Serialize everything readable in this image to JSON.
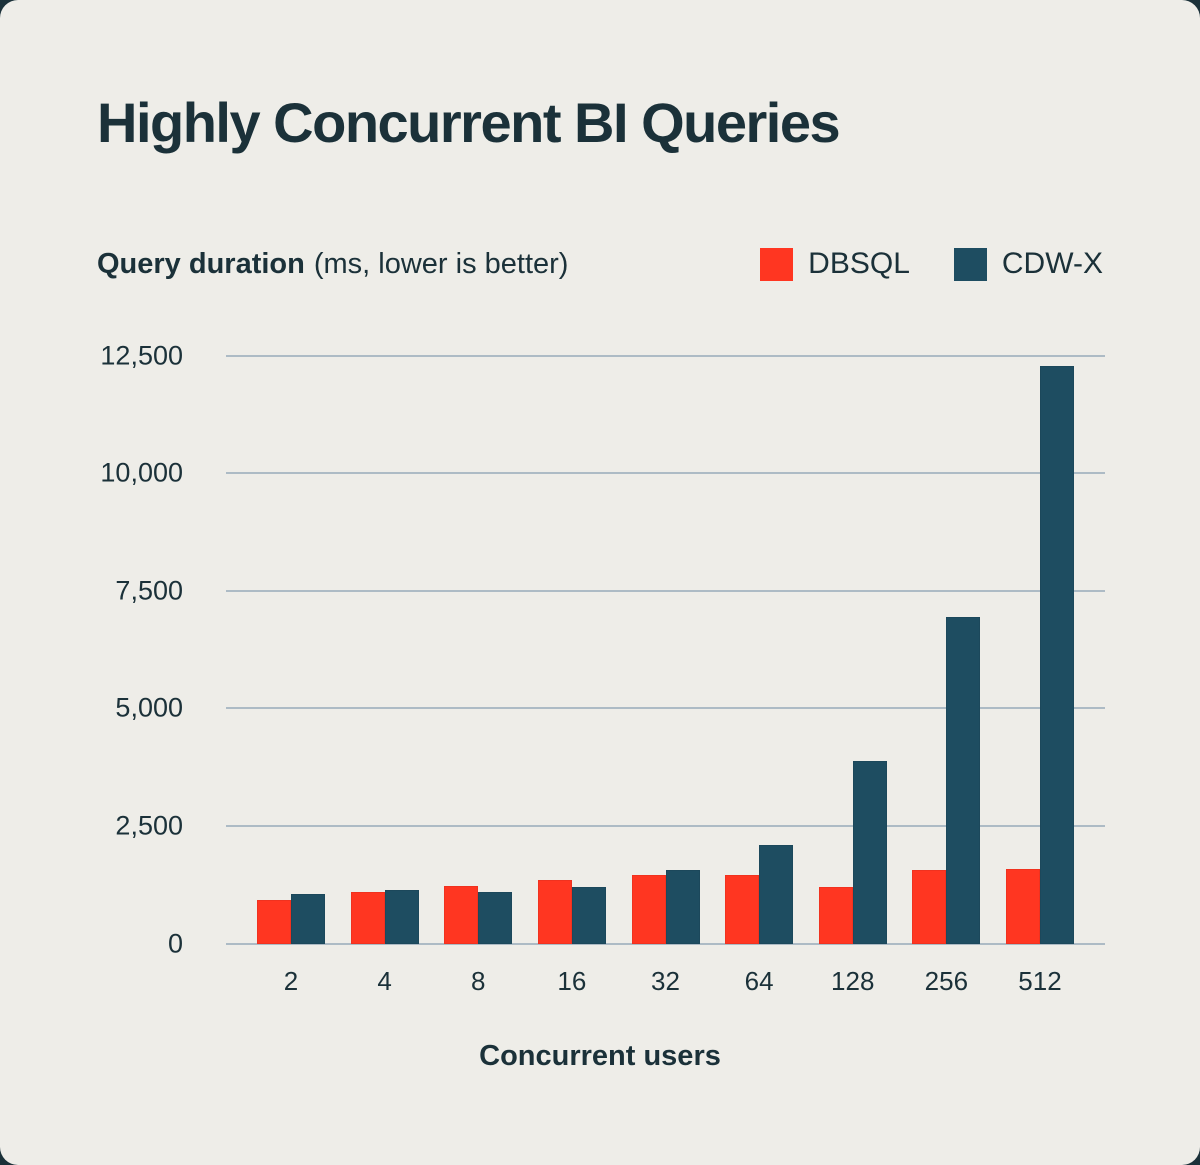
{
  "card": {
    "title": "Highly Concurrent BI Queries",
    "subtitle_bold": "Query duration",
    "subtitle_rest": "(ms, lower is better)"
  },
  "legend": [
    {
      "label": "DBSQL",
      "color": "#ff3621"
    },
    {
      "label": "CDW-X",
      "color": "#1e4d61"
    }
  ],
  "colors": {
    "background": "#eeede8",
    "text": "#1b3139",
    "gridline": "#adbbc5",
    "dbsql_red": "#ff3621",
    "cdwx_teal": "#1e4d61"
  },
  "chart_data": {
    "type": "bar",
    "title": "Highly Concurrent BI Queries",
    "subtitle": "Query duration (ms, lower is better)",
    "xlabel": "Concurrent users",
    "ylabel": "Query duration (ms)",
    "categories": [
      "2",
      "4",
      "8",
      "16",
      "32",
      "64",
      "128",
      "256",
      "512"
    ],
    "series": [
      {
        "name": "DBSQL",
        "color": "#ff3621",
        "values": [
          920,
          1090,
          1220,
          1340,
          1460,
          1450,
          1210,
          1570,
          1580
        ]
      },
      {
        "name": "CDW-X",
        "color": "#1e4d61",
        "values": [
          1050,
          1140,
          1100,
          1210,
          1570,
          2100,
          3880,
          6940,
          12280
        ]
      }
    ],
    "ylim": [
      0,
      12500
    ],
    "yticks": [
      0,
      2500,
      5000,
      7500,
      10000,
      12500
    ],
    "ytick_labels": [
      "0",
      "2,500",
      "5,000",
      "7,500",
      "10,000",
      "12,500"
    ],
    "grid": true,
    "legend_position": "top-right"
  }
}
